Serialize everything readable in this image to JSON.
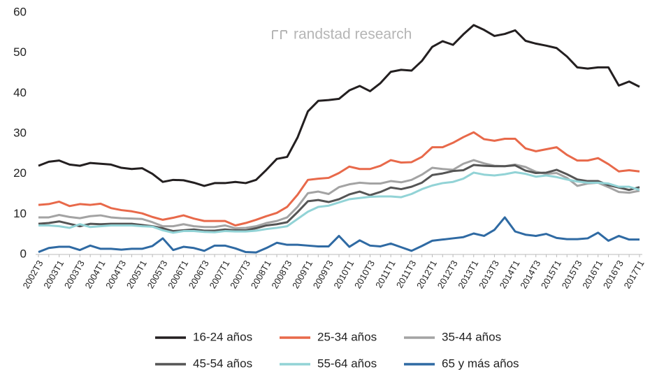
{
  "chart_data": {
    "type": "line",
    "watermark": "randstad research",
    "categories": [
      "2002T3",
      null,
      "2003T1",
      null,
      "2003T3",
      null,
      "2004T1",
      null,
      "2004T3",
      null,
      "2005T1",
      null,
      "2005T3",
      null,
      "2006T1",
      null,
      "2006T3",
      null,
      "2007T1",
      null,
      "2007T3",
      null,
      "2008T1",
      null,
      "2008T3",
      null,
      "2009T1",
      null,
      "2009T3",
      null,
      "2010T1",
      null,
      "2010T3",
      null,
      "2011T1",
      null,
      "2011T3",
      null,
      "2012T1",
      null,
      "2012T3",
      null,
      "2013T1",
      null,
      "2013T3",
      null,
      "2014T1",
      null,
      "2014T3",
      null,
      "2015T1",
      null,
      "2015T3",
      null,
      "2016T1",
      null,
      "2016T3",
      null,
      "2017T1"
    ],
    "ylim": [
      0,
      60
    ],
    "yticks": [
      0,
      10,
      20,
      30,
      40,
      50,
      60
    ],
    "grid": false,
    "series": [
      {
        "name": "16-24 años",
        "color": "#231f20",
        "values": [
          22,
          23,
          23.3,
          22.3,
          22,
          22.7,
          22.5,
          22.3,
          21.5,
          21.2,
          21.4,
          20,
          18,
          18.5,
          18.4,
          17.8,
          17,
          17.7,
          17.7,
          18,
          17.7,
          18.5,
          21,
          23.7,
          24.2,
          29,
          35.5,
          38.1,
          38.3,
          38.6,
          40.7,
          41.8,
          40.5,
          42.5,
          45.3,
          45.8,
          45.6,
          48,
          51.5,
          52.9,
          52,
          54.6,
          56.9,
          55.7,
          54.2,
          54.7,
          55.6,
          53,
          52.3,
          51.8,
          51.2,
          49.1,
          46.4,
          46.1,
          46.4,
          46.4,
          41.9,
          42.9,
          41.6
        ]
      },
      {
        "name": "25-34 años",
        "color": "#e8694a",
        "values": [
          12.3,
          12.5,
          13.1,
          12,
          12.5,
          12.3,
          12.6,
          11.5,
          11,
          10.7,
          10.2,
          9.3,
          8.6,
          9.1,
          9.7,
          8.9,
          8.3,
          8.3,
          8.3,
          7.2,
          7.8,
          8.6,
          9.5,
          10.3,
          11.8,
          14.8,
          18.5,
          18.8,
          19,
          20.2,
          21.8,
          21.2,
          21.2,
          22,
          23.4,
          22.8,
          22.9,
          24.2,
          26.6,
          26.6,
          27.7,
          29.1,
          30.3,
          28.6,
          28.2,
          28.7,
          28.7,
          26.3,
          25.6,
          26.1,
          26.6,
          24.7,
          23.3,
          23.3,
          23.9,
          22.4,
          20.6,
          20.9,
          20.6
        ]
      },
      {
        "name": "35-44 años",
        "color": "#a3a3a3",
        "values": [
          9.2,
          9.2,
          9.8,
          9.3,
          9,
          9.5,
          9.7,
          9.2,
          9,
          8.9,
          8.8,
          8,
          7,
          7,
          7.5,
          7,
          6.8,
          6.8,
          7.2,
          6.5,
          6.6,
          7,
          7.8,
          8.3,
          9.2,
          11.8,
          15.2,
          15.6,
          15,
          16.7,
          17.4,
          17.8,
          17.6,
          17.6,
          18.2,
          17.9,
          18.5,
          19.8,
          21.5,
          21.2,
          21,
          22.5,
          23.4,
          22.6,
          22,
          21.9,
          22.3,
          21.7,
          20.5,
          20,
          20.2,
          19,
          17,
          17.6,
          17.8,
          16.7,
          15.5,
          15.3,
          15.8
        ]
      },
      {
        "name": "45-54 años",
        "color": "#555555",
        "values": [
          7.6,
          7.8,
          8.2,
          7.6,
          7,
          7.6,
          7.5,
          7.6,
          7.6,
          7.6,
          7.3,
          7,
          6.5,
          5.8,
          6,
          6.2,
          5.9,
          5.9,
          6.2,
          6,
          6,
          6.5,
          7.2,
          7.5,
          8,
          10.5,
          13.2,
          13.5,
          13,
          13.7,
          14.9,
          15.6,
          14.7,
          15.5,
          16.6,
          16.2,
          16.8,
          17.8,
          19.7,
          20.1,
          20.7,
          20.9,
          22.2,
          22,
          21.9,
          21.9,
          22.1,
          20.8,
          20.2,
          20.3,
          21,
          19.9,
          18.6,
          18.2,
          18.2,
          17.2,
          16.6,
          16,
          16.7
        ]
      },
      {
        "name": "55-64 años",
        "color": "#92d3d6",
        "values": [
          7.2,
          7.2,
          7,
          6.6,
          7.5,
          6.8,
          7,
          7.2,
          7.2,
          7.2,
          7,
          6.9,
          6,
          5.4,
          5.8,
          5.8,
          5.6,
          5.5,
          5.8,
          5.7,
          5.7,
          5.9,
          6.3,
          6.6,
          7,
          8.8,
          10.6,
          11.8,
          12.1,
          12.9,
          13.7,
          14,
          14.3,
          14.4,
          14.4,
          14.2,
          15,
          16.2,
          17.1,
          17.7,
          18,
          18.8,
          20.3,
          19.8,
          19.6,
          19.9,
          20.4,
          20,
          19.3,
          19.6,
          19.2,
          18.6,
          18.1,
          17.8,
          17.8,
          17.6,
          16.8,
          16.8,
          16
        ]
      },
      {
        "name": "65 y más años",
        "color": "#2f6aa3",
        "values": [
          0.6,
          1.6,
          1.9,
          1.9,
          1.1,
          2.2,
          1.4,
          1.4,
          1.2,
          1.4,
          1.4,
          2.1,
          4,
          1.1,
          1.9,
          1.6,
          0.9,
          2.2,
          2.2,
          1.5,
          0.6,
          0.5,
          1.6,
          2.9,
          2.4,
          2.4,
          2.2,
          2,
          2,
          4.6,
          1.9,
          3.5,
          2.2,
          2,
          2.7,
          1.8,
          0.9,
          2.1,
          3.4,
          3.7,
          4,
          4.3,
          5.2,
          4.6,
          6.1,
          9.2,
          5.7,
          4.9,
          4.6,
          5.1,
          4.1,
          3.8,
          3.8,
          4,
          5.4,
          3.4,
          4.6,
          3.7,
          3.7
        ]
      }
    ]
  }
}
